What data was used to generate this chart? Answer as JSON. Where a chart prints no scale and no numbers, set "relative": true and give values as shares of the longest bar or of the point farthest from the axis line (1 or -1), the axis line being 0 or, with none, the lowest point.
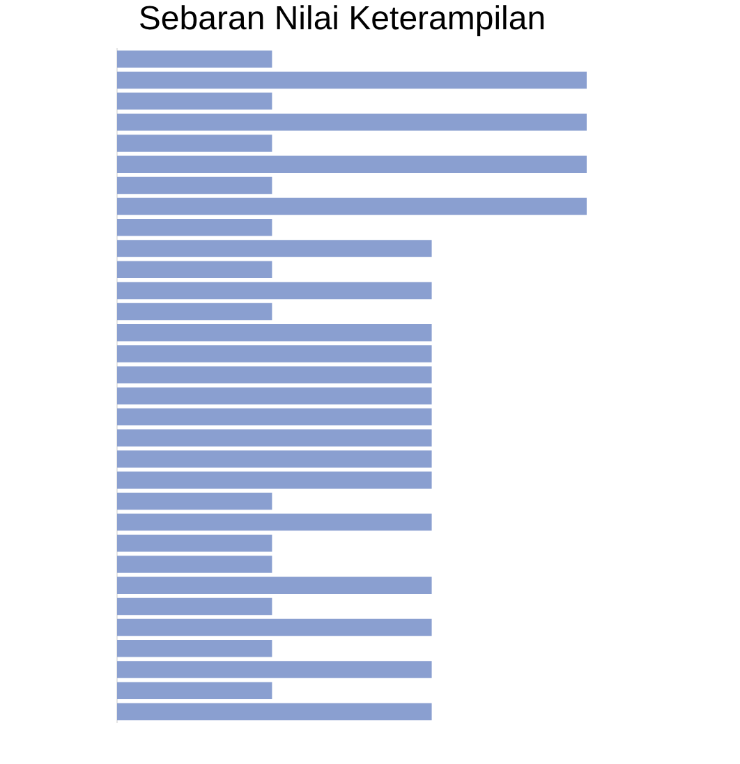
{
  "chart_data": {
    "type": "bar",
    "orientation": "horizontal",
    "relative": true,
    "title": "Sebaran Nilai Keterampilan",
    "color": "#8a9fd0",
    "categories": [
      null,
      null,
      null,
      null,
      null,
      null,
      null,
      null,
      null,
      null,
      null,
      null,
      null,
      null,
      null,
      null,
      null,
      null,
      null,
      null,
      null,
      null,
      null,
      null,
      null,
      null,
      null,
      null,
      null,
      null,
      null,
      null
    ],
    "values": [
      0.33,
      1,
      0.33,
      1,
      0.33,
      1,
      0.33,
      1,
      0.33,
      0.67,
      0.33,
      0.67,
      0.33,
      0.67,
      0.67,
      0.67,
      0.67,
      0.67,
      0.67,
      0.67,
      0.67,
      0.33,
      0.67,
      0.33,
      0.33,
      0.67,
      0.33,
      0.67,
      0.33,
      0.67,
      0.33,
      0.67
    ],
    "legend": false
  }
}
